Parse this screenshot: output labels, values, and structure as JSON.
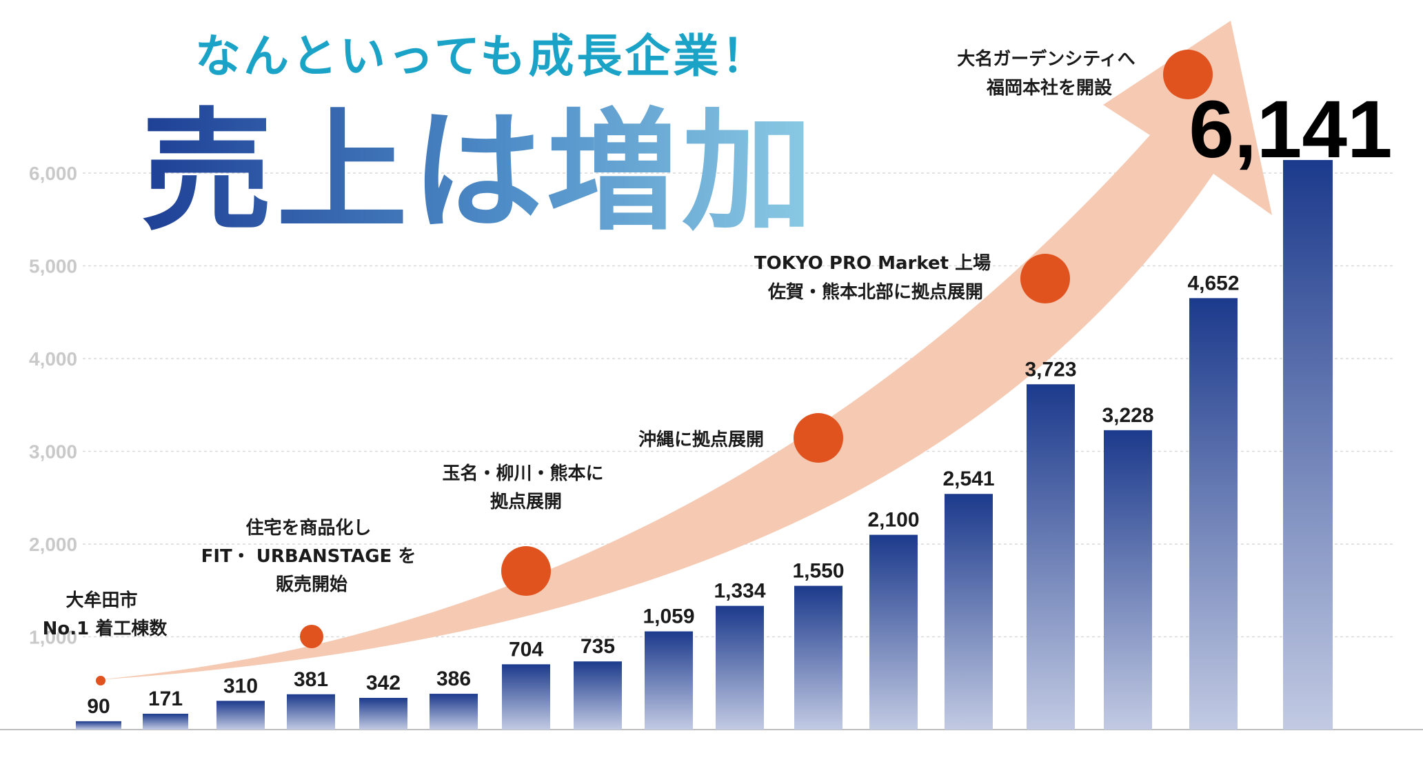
{
  "header": {
    "subtitle": "なんといっても成長企業！",
    "title": "売上は増加"
  },
  "colors": {
    "bar_top": "#1c3a8c",
    "bar_bottom": "#c2cae3",
    "arrow": "#f5c9b2",
    "dot": "#e0531f",
    "subtitle": "#1aa3c7",
    "title_start": "#1e3f95",
    "title_end": "#8ccbe4",
    "axis_label": "#c9c9c9",
    "grid": "#d9d9d9"
  },
  "chart_data": {
    "type": "bar",
    "yticks": [
      "1,000",
      "2,000",
      "3,000",
      "4,000",
      "5,000",
      "6,000"
    ],
    "ytick_values": [
      1000,
      2000,
      3000,
      4000,
      5000,
      6000
    ],
    "ylim": [
      0,
      6141
    ],
    "values": [
      90,
      171,
      310,
      381,
      342,
      386,
      704,
      735,
      1059,
      1334,
      1550,
      2100,
      2541,
      3723,
      3228,
      4652,
      6141
    ],
    "value_labels": [
      "90",
      "171",
      "310",
      "381",
      "342",
      "386",
      "704",
      "735",
      "1,059",
      "1,334",
      "1,550",
      "2,100",
      "2,541",
      "3,723",
      "3,228",
      "4,652",
      "6,141"
    ],
    "grid": "horizontal dashed",
    "annotations": [
      {
        "lines": [
          "大牟田市",
          "No.1 着工棟数"
        ]
      },
      {
        "lines": [
          "住宅を商品化し",
          "FIT・ URBANSTAGE を",
          "販売開始"
        ]
      },
      {
        "lines": [
          "玉名・柳川・熊本に",
          "拠点展開"
        ]
      },
      {
        "lines": [
          "沖縄に拠点展開"
        ]
      },
      {
        "lines": [
          "TOKYO PRO Market 上場",
          "佐賀・熊本北部に拠点展開"
        ]
      },
      {
        "lines": [
          "大名ガーデンシティへ",
          "福岡本社を開設"
        ]
      }
    ]
  }
}
